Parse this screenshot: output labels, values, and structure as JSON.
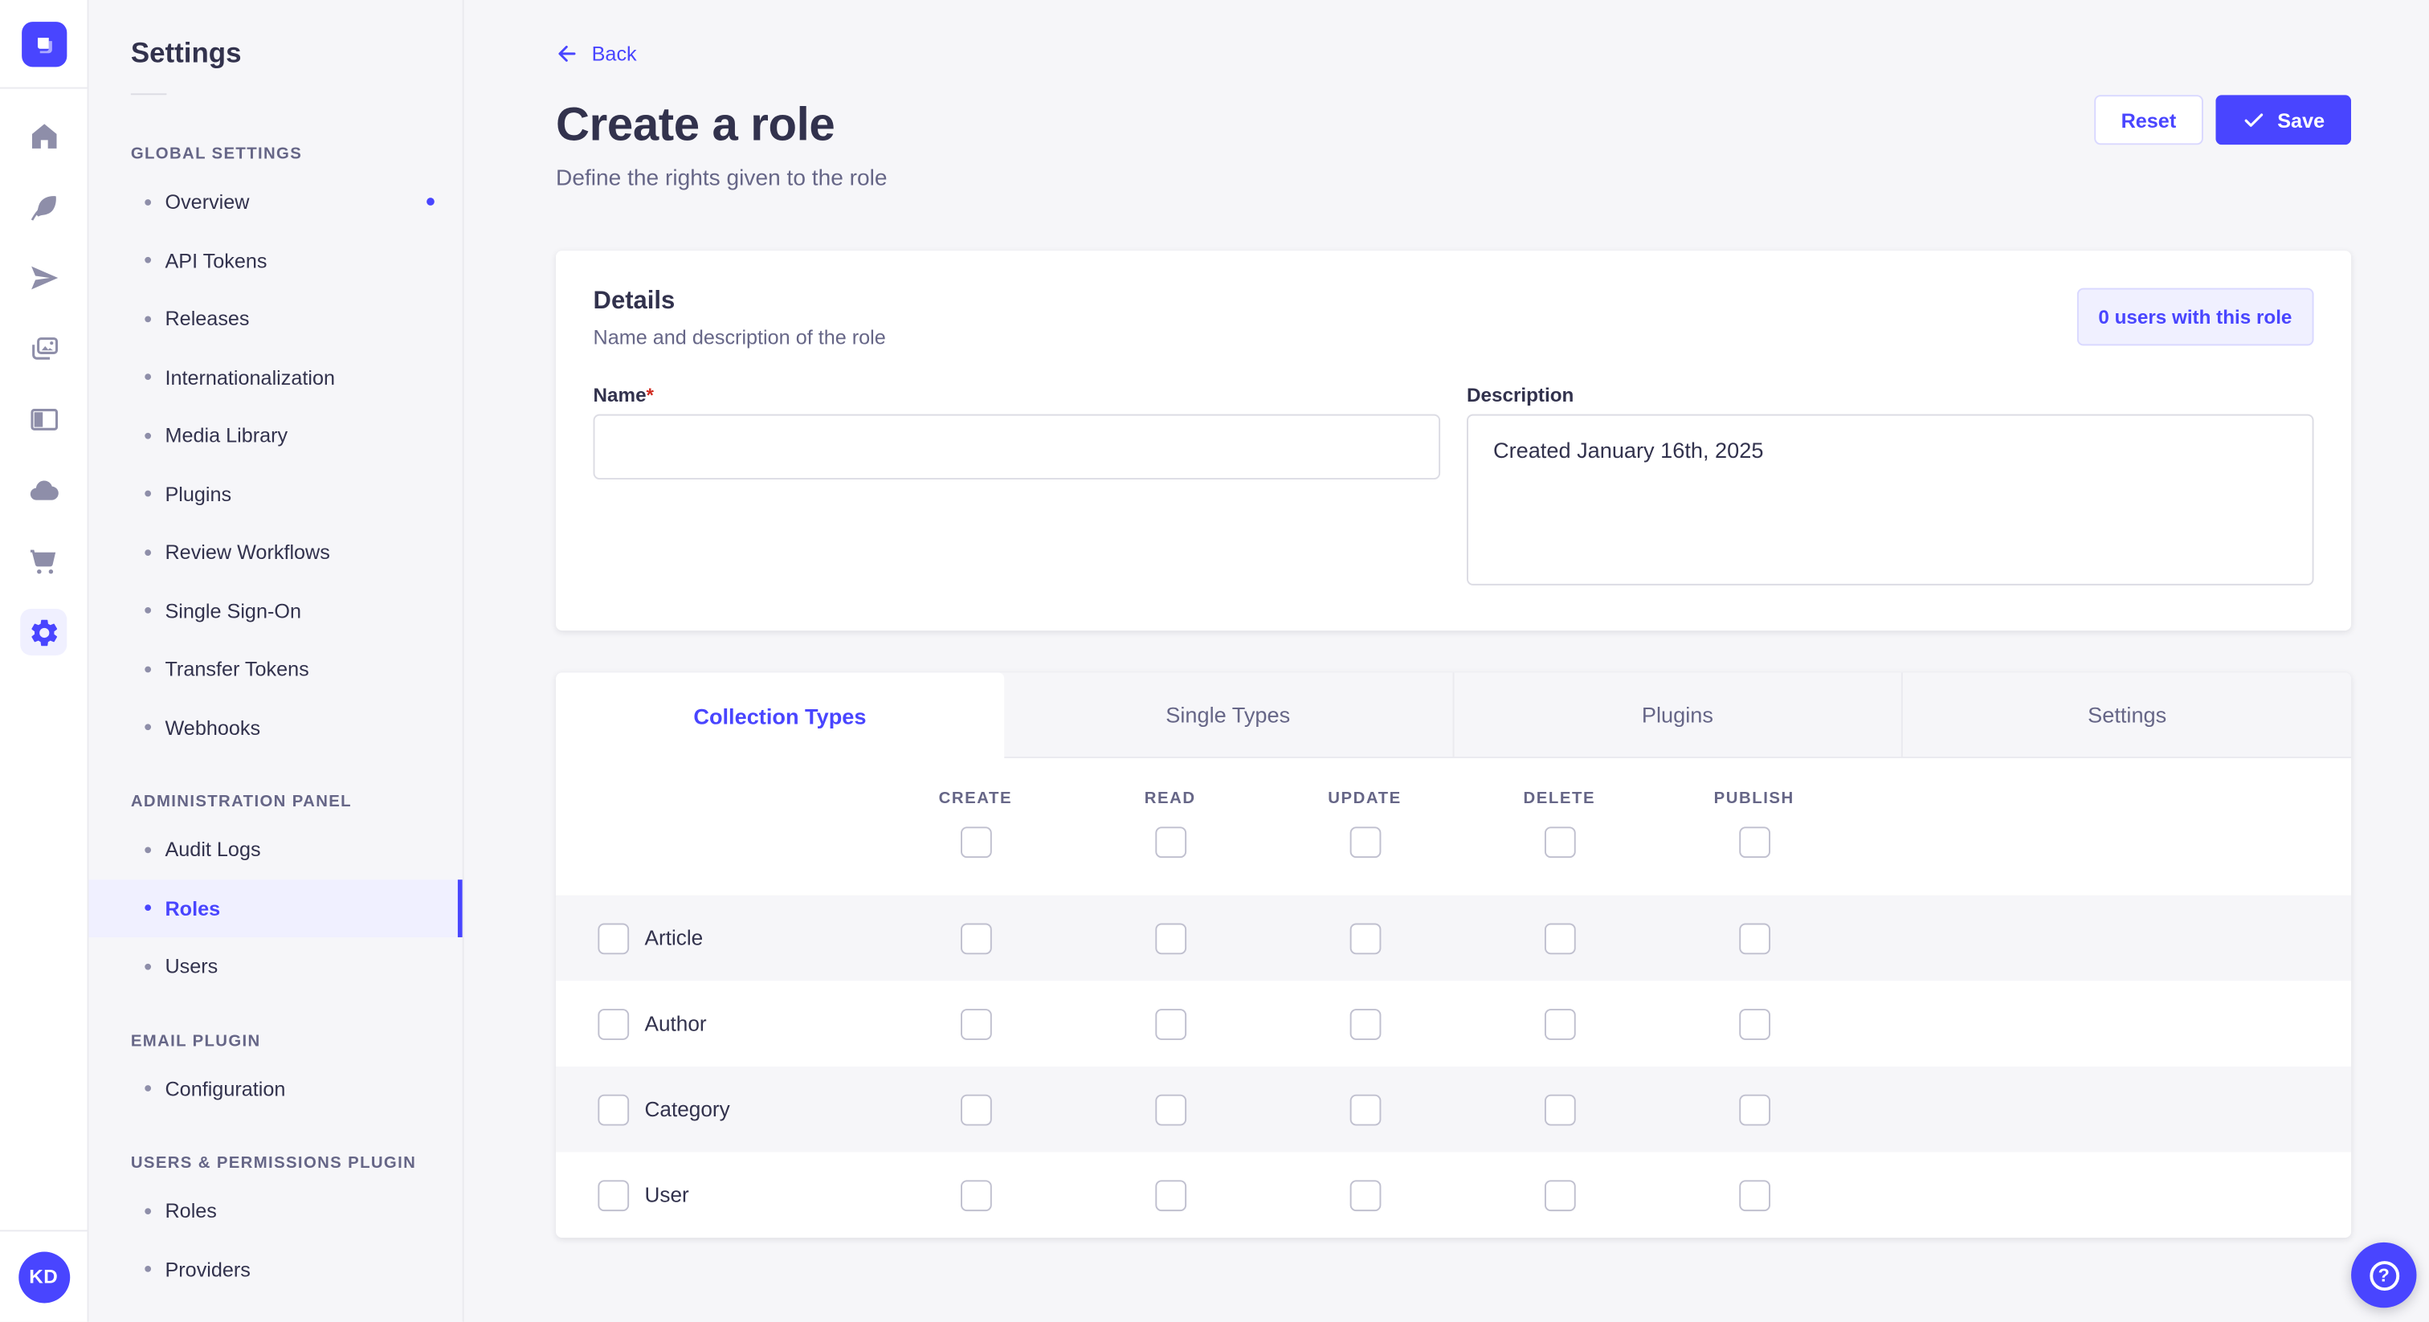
{
  "colors": {
    "primary": "#4945ff",
    "primary_light_bg": "#f0f0ff",
    "primary_border": "#d9d8ff",
    "page_bg": "#f6f6f9",
    "card_bg": "#ffffff",
    "text_dark": "#32324d",
    "text_muted": "#666687",
    "border": "#eaeaef",
    "input_border": "#dcdce4",
    "checkbox_border": "#c0c0cf",
    "icon_gray": "#8e8ea9",
    "required_red": "#d02b20"
  },
  "rail": {
    "logo_icon": "strapi-logo",
    "icons": [
      "home-icon",
      "feather-icon",
      "paper-plane-icon",
      "images-icon",
      "layout-icon",
      "cloud-icon",
      "cart-icon",
      "gear-icon"
    ],
    "active_icon": "gear-icon",
    "avatar_initials": "KD"
  },
  "sidebar": {
    "title": "Settings",
    "sections": [
      {
        "label": "GLOBAL SETTINGS",
        "items": [
          {
            "label": "Overview",
            "notification": true
          },
          {
            "label": "API Tokens"
          },
          {
            "label": "Releases"
          },
          {
            "label": "Internationalization"
          },
          {
            "label": "Media Library"
          },
          {
            "label": "Plugins"
          },
          {
            "label": "Review Workflows"
          },
          {
            "label": "Single Sign-On"
          },
          {
            "label": "Transfer Tokens"
          },
          {
            "label": "Webhooks"
          }
        ]
      },
      {
        "label": "ADMINISTRATION PANEL",
        "items": [
          {
            "label": "Audit Logs"
          },
          {
            "label": "Roles",
            "active": true
          },
          {
            "label": "Users"
          }
        ]
      },
      {
        "label": "EMAIL PLUGIN",
        "items": [
          {
            "label": "Configuration"
          }
        ]
      },
      {
        "label": "USERS & PERMISSIONS PLUGIN",
        "items": [
          {
            "label": "Roles"
          },
          {
            "label": "Providers"
          }
        ]
      }
    ]
  },
  "header": {
    "back_label": "Back",
    "title": "Create a role",
    "subtitle": "Define the rights given to the role",
    "reset_label": "Reset",
    "save_label": "Save"
  },
  "details": {
    "title": "Details",
    "subtitle": "Name and description of the role",
    "users_count_button": "0 users with this role",
    "name_label": "Name",
    "required_mark": "*",
    "name_value": "",
    "description_label": "Description",
    "description_value": "Created January 16th, 2025"
  },
  "permissions": {
    "tabs": [
      {
        "label": "Collection Types",
        "active": true
      },
      {
        "label": "Single Types"
      },
      {
        "label": "Plugins"
      },
      {
        "label": "Settings"
      }
    ],
    "columns": [
      "CREATE",
      "READ",
      "UPDATE",
      "DELETE",
      "PUBLISH"
    ],
    "header_checkboxes_checked": [
      false,
      false,
      false,
      false,
      false
    ],
    "rows": [
      {
        "label": "Article",
        "row_checked": false,
        "checked": [
          false,
          false,
          false,
          false,
          false
        ]
      },
      {
        "label": "Author",
        "row_checked": false,
        "checked": [
          false,
          false,
          false,
          false,
          false
        ]
      },
      {
        "label": "Category",
        "row_checked": false,
        "checked": [
          false,
          false,
          false,
          false,
          false
        ]
      },
      {
        "label": "User",
        "row_checked": false,
        "checked": [
          false,
          false,
          false,
          false,
          false
        ]
      }
    ]
  },
  "floating": {
    "help_icon": "question-mark-icon"
  }
}
